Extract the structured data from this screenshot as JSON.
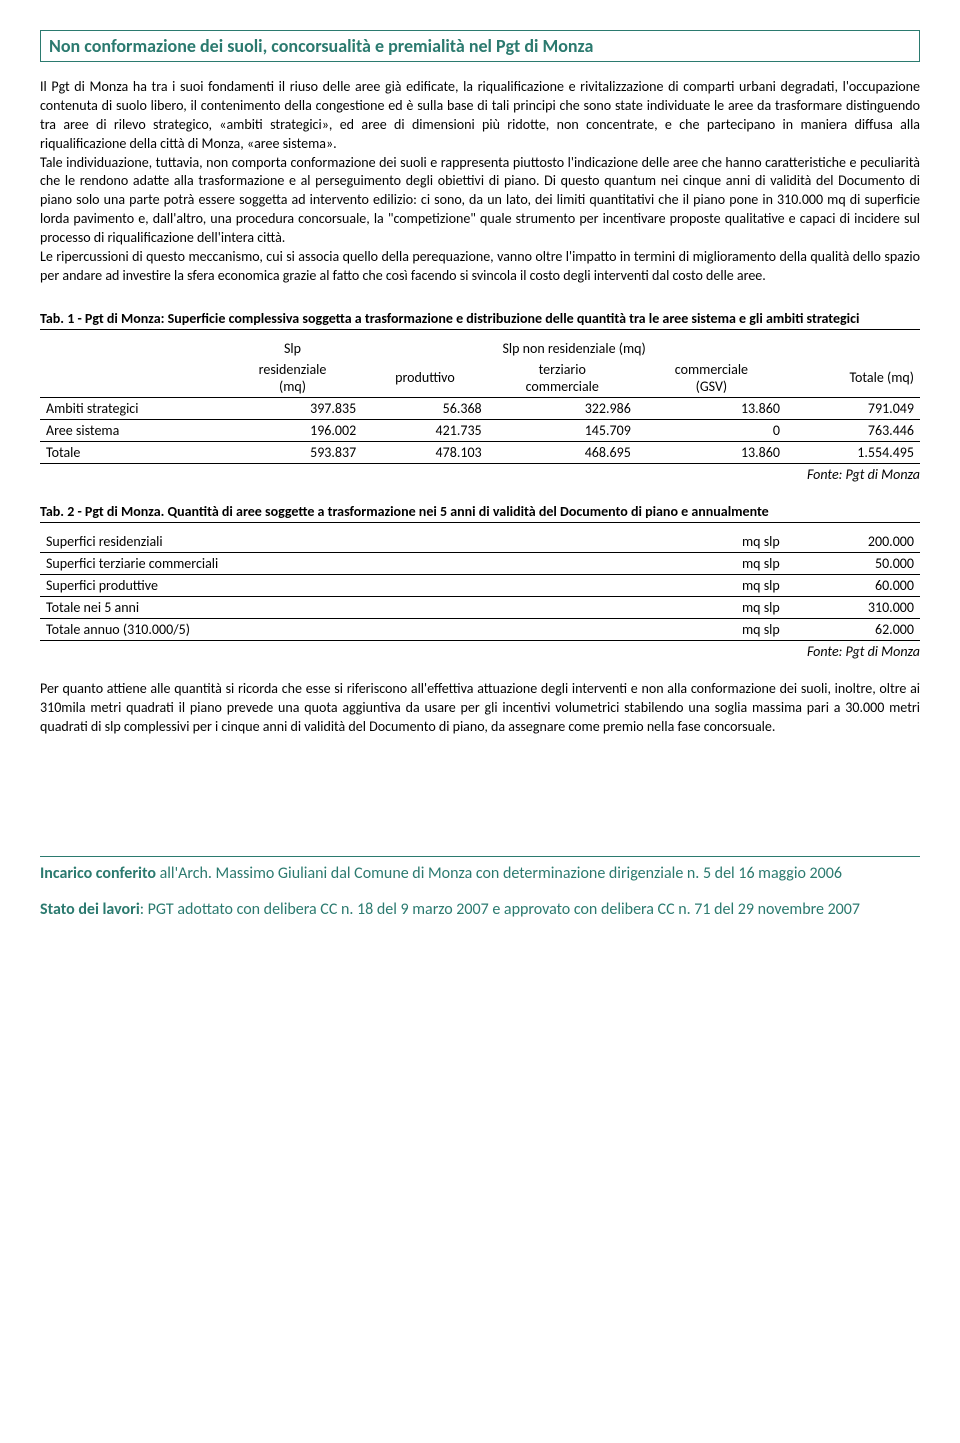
{
  "title": "Non conformazione dei suoli, concorsualità e premialità nel Pgt di Monza",
  "para1": "Il Pgt di Monza ha tra i suoi fondamenti il riuso delle aree già edificate, la riqualificazione e rivitalizzazione di comparti urbani degradati, l'occupazione contenuta di suolo libero, il contenimento della congestione ed è sulla base di tali principi che sono state individuate le aree da trasformare distinguendo tra aree di rilevo strategico, «ambiti strategici», ed aree di dimensioni più ridotte, non concentrate, e che partecipano in maniera diffusa alla riqualificazione della città di Monza, «aree sistema».",
  "para2": "Tale individuazione, tuttavia, non comporta conformazione dei suoli e rappresenta piuttosto l'indicazione delle aree che hanno caratteristiche e peculiarità che le rendono adatte alla trasformazione e al perseguimento degli obiettivi di piano. Di questo quantum nei cinque anni di validità del Documento di piano solo una parte potrà essere soggetta ad intervento edilizio: ci sono, da un lato, dei limiti quantitativi che il piano pone in 310.000 mq di superficie lorda pavimento e, dall'altro, una procedura concorsuale, la \"competizione\" quale strumento per incentivare proposte qualitative e capaci di incidere sul processo di riqualificazione dell'intera città.",
  "para3": "Le ripercussioni di questo meccanismo, cui si associa quello della perequazione, vanno oltre l'impatto in termini di miglioramento della qualità dello spazio per andare ad investire la sfera economica grazie al fatto che così facendo si svincola il costo degli interventi dal costo delle aree.",
  "tab1": {
    "caption": "Tab. 1 - Pgt di Monza: Superficie complessiva soggetta a trasformazione e distribuzione delle quantità tra le aree sistema e gli ambiti strategici",
    "h_slp_res": "Slp residenziale (mq)",
    "h_slp_nonres": "Slp non residenziale (mq)",
    "h_prod": "produttivo",
    "h_terz": "terziario commerciale",
    "h_comm": "commerciale (GSV)",
    "h_tot": "Totale (mq)",
    "rows": [
      {
        "label": "Ambiti strategici",
        "c1": "397.835",
        "c2": "56.368",
        "c3": "322.986",
        "c4": "13.860",
        "c5": "791.049"
      },
      {
        "label": "Aree sistema",
        "c1": "196.002",
        "c2": "421.735",
        "c3": "145.709",
        "c4": "0",
        "c5": "763.446"
      },
      {
        "label": "Totale",
        "c1": "593.837",
        "c2": "478.103",
        "c3": "468.695",
        "c4": "13.860",
        "c5": "1.554.495"
      }
    ],
    "source": "Fonte: Pgt di Monza"
  },
  "tab2": {
    "caption": "Tab. 2 - Pgt di Monza. Quantità di aree soggette a trasformazione nei 5 anni di validità del Documento di piano e annualmente",
    "rows": [
      {
        "label": "Superfici residenziali",
        "unit": "mq slp",
        "val": "200.000"
      },
      {
        "label": "Superfici terziarie commerciali",
        "unit": "mq slp",
        "val": "50.000"
      },
      {
        "label": "Superfici produttive",
        "unit": "mq slp",
        "val": "60.000"
      },
      {
        "label": "Totale nei 5 anni",
        "unit": "mq slp",
        "val": "310.000"
      },
      {
        "label": "Totale annuo (310.000/5)",
        "unit": "mq slp",
        "val": "62.000"
      }
    ],
    "source": "Fonte: Pgt di Monza"
  },
  "para4": "Per quanto attiene alle quantità si ricorda che esse si riferiscono all'effettiva attuazione degli interventi e non alla conformazione dei suoli, inoltre, oltre ai 310mila metri quadrati il piano prevede una quota aggiuntiva da usare per gli incentivi volumetrici stabilendo una soglia massima pari a 30.000 metri quadrati di slp complessivi per i cinque anni di validità del Documento di piano, da assegnare come premio nella fase concorsuale.",
  "footer": {
    "incarico_label": "Incarico conferito",
    "incarico_text": " all'Arch. Massimo Giuliani dal Comune di Monza con determinazione dirigenziale n. 5 del 16 maggio 2006",
    "stato_label": "Stato dei lavori",
    "stato_text": ":  PGT adottato con delibera CC n. 18 del 9 marzo 2007 e approvato con delibera CC n. 71 del 29 novembre 2007"
  }
}
